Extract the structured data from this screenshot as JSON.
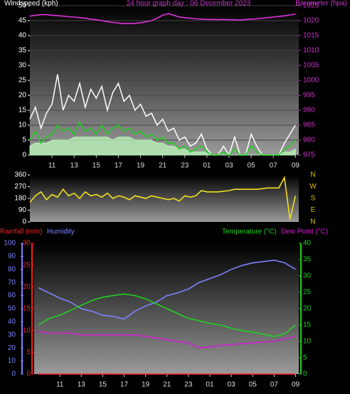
{
  "chart_data": [
    {
      "type": "line",
      "title": "24 hour graph day : 06 December 2023",
      "y_label": "Windspeed (kph)",
      "y2_label": "Barometer (hpa)",
      "y_color": "#ffffff",
      "y2_color": "#d030d0",
      "title_color": "#d030d0",
      "grid": true,
      "xlim": [
        9,
        33.3
      ],
      "xticks": [
        11,
        13,
        15,
        17,
        19,
        21,
        23,
        {
          "value": 25,
          "label": "01"
        },
        {
          "value": 27,
          "label": "03"
        },
        {
          "value": 29,
          "label": "05"
        },
        {
          "value": 31,
          "label": "07"
        },
        {
          "value": 33,
          "label": "09"
        }
      ],
      "ylim": [
        0,
        50
      ],
      "yticks": [
        0,
        5,
        10,
        15,
        20,
        25,
        30,
        35,
        40,
        45,
        50
      ],
      "y2lim": [
        975,
        1025
      ],
      "y2ticks": [
        975,
        980,
        985,
        990,
        995,
        1000,
        1005,
        1010,
        1015,
        1020,
        1025
      ],
      "x": [
        9,
        9.5,
        10,
        10.5,
        11,
        11.5,
        12,
        12.5,
        13,
        13.5,
        14,
        14.5,
        15,
        15.5,
        16,
        16.5,
        17,
        17.5,
        18,
        18.5,
        19,
        19.5,
        20,
        20.5,
        21,
        21.5,
        22,
        22.5,
        23,
        23.5,
        24,
        24.5,
        25,
        25.5,
        26,
        26.5,
        27,
        27.5,
        28,
        28.5,
        29,
        29.5,
        30,
        30.5,
        31,
        31.5,
        32,
        32.5,
        33
      ],
      "series": [
        {
          "color": "#ffffff",
          "values": [
            12,
            16,
            9,
            14,
            17,
            27,
            15,
            20,
            18,
            24,
            16,
            22,
            19,
            23,
            15,
            21,
            24,
            18,
            20,
            15,
            17,
            13,
            14,
            10,
            12,
            8,
            9,
            5,
            6,
            3,
            4,
            7,
            2,
            0,
            0,
            3,
            0,
            6,
            0,
            0,
            7,
            3,
            0,
            0,
            0,
            0,
            4,
            7,
            10
          ]
        },
        {
          "color": "#b8f0b8",
          "fill": true,
          "values": [
            3,
            4,
            4,
            4,
            5,
            5,
            5,
            5,
            6,
            6,
            6,
            6,
            6,
            6,
            6,
            5,
            6,
            6,
            6,
            5,
            5,
            5,
            5,
            4,
            4,
            3,
            3,
            2,
            2,
            1,
            1,
            1,
            1,
            0,
            0,
            0,
            0,
            0,
            0,
            0,
            0,
            0,
            0,
            0,
            0,
            0,
            1,
            1,
            2
          ]
        },
        {
          "color": "#20d020",
          "values": [
            5,
            8,
            4,
            6,
            7,
            10,
            8,
            9,
            7,
            11,
            8,
            9,
            7,
            10,
            7,
            9,
            10,
            8,
            9,
            7,
            8,
            6,
            7,
            5,
            6,
            4,
            4,
            2,
            3,
            1,
            2,
            3,
            1,
            0,
            0,
            1,
            0,
            2,
            0,
            0,
            3,
            1,
            0,
            0,
            0,
            0,
            2,
            3,
            5
          ]
        },
        {
          "color": "#e030e0",
          "axis": "y2",
          "values": [
            1021.5,
            1021.8,
            1022,
            1022,
            1021.8,
            1021.7,
            1021.5,
            1021.3,
            1021.2,
            1021,
            1020.8,
            1020.5,
            1020.3,
            1020,
            1019.7,
            1019.4,
            1019.2,
            1019,
            1019,
            1019.1,
            1019.3,
            1019.6,
            1020,
            1020.8,
            1021.8,
            1022.3,
            1021.8,
            1021.2,
            1021,
            1020.8,
            1020.6,
            1020.5,
            1020.4,
            1020.4,
            1020.3,
            1020.4,
            1020.3,
            1020.3,
            1020.2,
            1020.4,
            1020.5,
            1020.6,
            1020.8,
            1021,
            1021.2,
            1021.4,
            1021.6,
            1021.9,
            1022.2
          ]
        }
      ]
    },
    {
      "type": "line",
      "y_color": "#ffffff",
      "y2_color": "#e0c000",
      "xlim": [
        9,
        33.3
      ],
      "ylim": [
        0,
        360
      ],
      "yticks": [
        0,
        90,
        180,
        270,
        360
      ],
      "y2lim": [
        0,
        360
      ],
      "y2ticks": [
        {
          "value": 360,
          "label": "N"
        },
        {
          "value": 270,
          "label": "W"
        },
        {
          "value": 180,
          "label": "S"
        },
        {
          "value": 90,
          "label": "E"
        },
        {
          "value": 0,
          "label": "N"
        }
      ],
      "x": [
        9,
        9.5,
        10,
        10.5,
        11,
        11.5,
        12,
        12.5,
        13,
        13.5,
        14,
        14.5,
        15,
        15.5,
        16,
        16.5,
        17,
        17.5,
        18,
        18.5,
        19,
        19.5,
        20,
        20.5,
        21,
        21.5,
        22,
        22.5,
        23,
        23.5,
        24,
        24.5,
        25,
        25.5,
        26,
        26.5,
        27,
        27.5,
        28,
        28.5,
        29,
        29.5,
        30,
        30.5,
        31,
        31.5,
        32,
        32.5,
        33
      ],
      "series": [
        {
          "color": "#f0e020",
          "values": [
            150,
            200,
            230,
            170,
            210,
            190,
            250,
            200,
            220,
            180,
            230,
            200,
            210,
            190,
            220,
            180,
            200,
            190,
            170,
            200,
            190,
            180,
            200,
            190,
            180,
            170,
            180,
            160,
            200,
            190,
            200,
            240,
            230,
            230,
            230,
            235,
            240,
            250,
            250,
            250,
            250,
            250,
            255,
            260,
            260,
            260,
            340,
            20,
            200
          ]
        }
      ]
    },
    {
      "type": "line",
      "y_color": "#ff2020",
      "y2_color": "#20d020",
      "y3_color": "#8080ff",
      "xlim": [
        8.6,
        33.3
      ],
      "xticks": [
        11,
        13,
        15,
        17,
        19,
        21,
        23,
        {
          "value": 25,
          "label": "01"
        },
        {
          "value": 27,
          "label": "03"
        },
        {
          "value": 29,
          "label": "05"
        },
        {
          "value": 31,
          "label": "07"
        },
        {
          "value": 33,
          "label": "09"
        }
      ],
      "ylim": [
        0,
        30
      ],
      "yticks": [
        0,
        5,
        10,
        15,
        20,
        25,
        30
      ],
      "y2lim": [
        0,
        40
      ],
      "y2ticks": [
        0,
        5,
        10,
        15,
        20,
        25,
        30,
        35,
        40
      ],
      "y3lim": [
        0,
        100
      ],
      "y3ticks": [
        0,
        10,
        20,
        30,
        40,
        50,
        60,
        70,
        80,
        90,
        100
      ],
      "x": [
        9,
        10,
        11,
        12,
        13,
        14,
        15,
        16,
        17,
        18,
        19,
        20,
        21,
        22,
        23,
        24,
        25,
        26,
        27,
        28,
        29,
        30,
        31,
        32,
        33
      ],
      "series": [
        {
          "name": "Rainfall (mm)",
          "color": "#ff2020",
          "values": [
            0,
            0,
            0,
            0,
            0,
            0,
            0,
            0,
            0,
            0,
            0,
            0,
            0,
            0,
            0,
            0,
            0,
            0,
            0,
            0,
            0,
            0,
            0,
            0,
            0
          ]
        },
        {
          "name": "Humidity",
          "color": "#8080ff",
          "axis": "y3",
          "values": [
            66,
            62,
            58,
            55,
            50,
            48,
            45,
            44,
            42,
            48,
            52,
            55,
            60,
            62,
            65,
            70,
            73,
            76,
            80,
            83,
            85,
            86,
            87,
            85,
            80
          ]
        },
        {
          "name": "Temperature (°C)",
          "color": "#20d020",
          "axis": "y2",
          "values": [
            15,
            17,
            18,
            19.5,
            21,
            22.5,
            23.5,
            24,
            24.5,
            24,
            23,
            21.5,
            20,
            18.5,
            17,
            16.3,
            15.5,
            15,
            14,
            13.3,
            12.8,
            12.2,
            11.5,
            12.3,
            15
          ]
        },
        {
          "name": "Dew Point (°C)",
          "color": "#d020d0",
          "axis": "y2",
          "values": [
            13,
            12.5,
            12.5,
            12.5,
            12,
            12,
            12,
            12,
            12,
            12,
            11.5,
            11,
            10.5,
            10,
            9.5,
            8,
            8.3,
            8.8,
            9,
            9.3,
            9.5,
            9.8,
            10,
            10.8,
            11.5
          ]
        }
      ]
    }
  ]
}
